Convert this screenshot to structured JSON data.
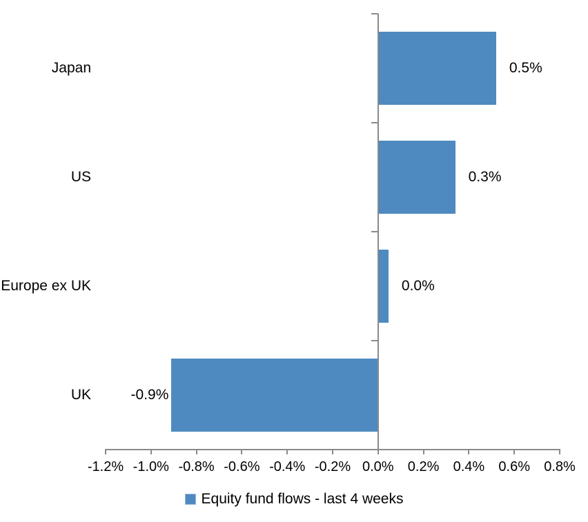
{
  "chart_data": {
    "type": "bar",
    "orientation": "horizontal",
    "title": "",
    "xlabel": "",
    "ylabel": "",
    "categories": [
      "Japan",
      "US",
      "Europe ex UK",
      "UK"
    ],
    "series": [
      {
        "name": "Equity fund flows - last 4 weeks",
        "values": [
          0.5,
          0.3,
          0.0,
          -0.9
        ],
        "values_precise_pct": [
          0.52,
          0.34,
          0.046,
          -0.91
        ],
        "data_labels": [
          "0.5%",
          "0.3%",
          "0.0%",
          "-0.9%"
        ],
        "color": "#4E8AC0"
      }
    ],
    "xlim": [
      -1.2,
      0.8
    ],
    "x_tick_values": [
      -1.2,
      -1.0,
      -0.8,
      -0.6,
      -0.4,
      -0.2,
      0.0,
      0.2,
      0.4,
      0.6,
      0.8
    ],
    "x_tick_labels": [
      "-1.2%",
      "-1.0%",
      "-0.8%",
      "-0.6%",
      "-0.4%",
      "-0.2%",
      "0.0%",
      "0.2%",
      "0.4%",
      "0.6%",
      "0.8%"
    ],
    "grid": false,
    "legend_position": "bottom"
  },
  "legend": {
    "items": [
      {
        "label": "Equity fund flows - last 4 weeks",
        "swatch_color": "#4E8AC0",
        "swatch_border": "#9ab8d8"
      }
    ]
  },
  "colors": {
    "bar": "#4E8AC0",
    "axis": "#8A8A8A",
    "text": "#000000",
    "background": "#FFFFFF"
  }
}
